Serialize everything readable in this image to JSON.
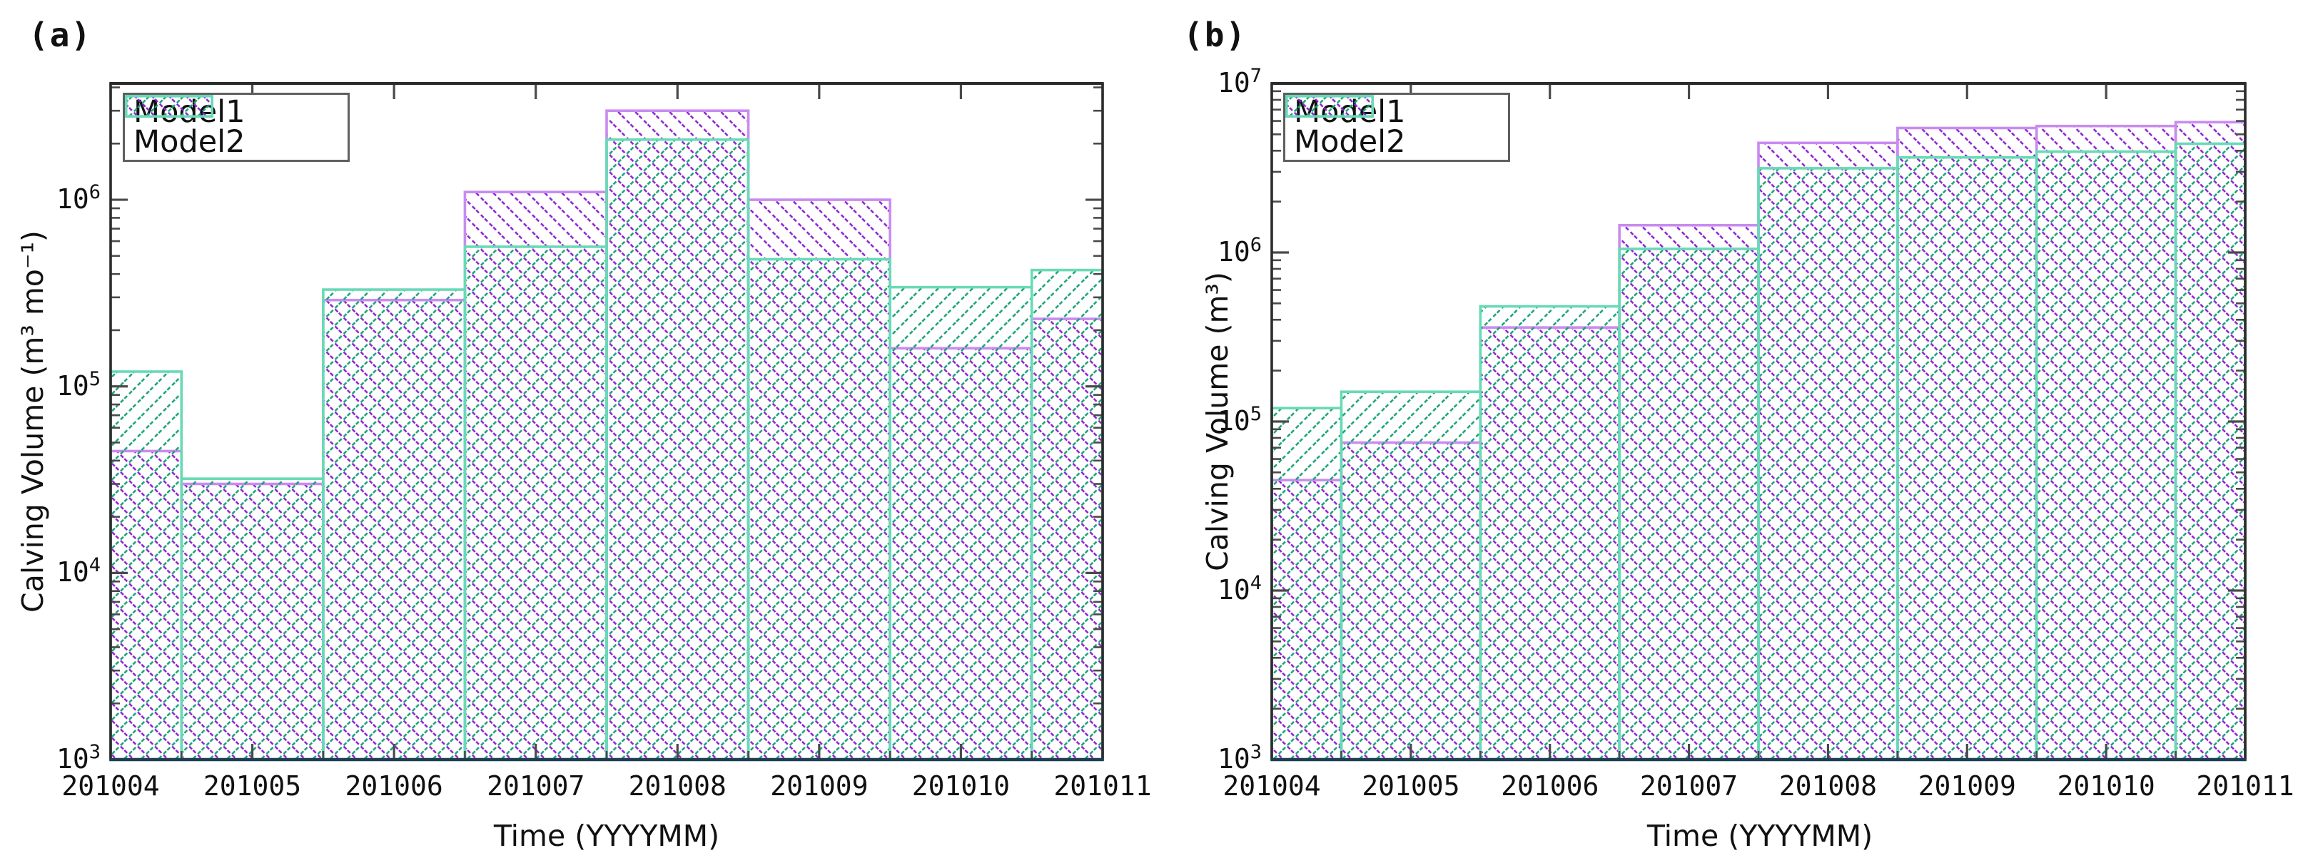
{
  "style": {
    "background": "#ffffff",
    "model1_edge": "#c98bf0",
    "model1_hatch": "#8a22d0",
    "model2_edge": "#68dab5",
    "model2_hatch": "#17a079",
    "spine": "#2c2c2c",
    "baseline": "#1e3e54",
    "tick": "#4a4a4a",
    "text": "#111111",
    "legend_border": "#5f5f5f"
  },
  "legend": {
    "items": [
      "Model1",
      "Model2"
    ],
    "position": "upper-left"
  },
  "chart_data": [
    {
      "type": "bar",
      "title": "(a)",
      "xlabel": "Time (YYYYMM)",
      "ylabel": "Calving Volume (m³ mo⁻¹)",
      "yscale": "log",
      "ylim": [
        1000,
        4200000
      ],
      "ytick_exponents": [
        3,
        4,
        5,
        6
      ],
      "grid": false,
      "categories": [
        "201004",
        "201005",
        "201006",
        "201007",
        "201008",
        "201009",
        "201010",
        "201011"
      ],
      "series": [
        {
          "name": "Model1",
          "hatch": "\\",
          "values": [
            45000,
            30000,
            290000,
            1100000,
            3000000,
            1000000,
            160000,
            230000
          ]
        },
        {
          "name": "Model2",
          "hatch": "/",
          "values": [
            120000,
            32000,
            330000,
            560000,
            2100000,
            480000,
            340000,
            420000
          ]
        }
      ]
    },
    {
      "type": "bar",
      "title": "(b)",
      "xlabel": "Time (YYYYMM)",
      "ylabel": "Calving Volume (m³)",
      "yscale": "log",
      "ylim": [
        1000,
        10000000
      ],
      "ytick_exponents": [
        3,
        4,
        5,
        6,
        7
      ],
      "grid": false,
      "categories": [
        "201004",
        "201005",
        "201006",
        "201007",
        "201008",
        "201009",
        "201010",
        "201011"
      ],
      "series": [
        {
          "name": "Model1",
          "hatch": "\\",
          "values": [
            45000,
            75000,
            360000,
            1450000,
            4450000,
            5450000,
            5600000,
            5900000
          ]
        },
        {
          "name": "Model2",
          "hatch": "/",
          "values": [
            120000,
            150000,
            480000,
            1050000,
            3150000,
            3650000,
            3950000,
            4400000
          ]
        }
      ]
    }
  ]
}
